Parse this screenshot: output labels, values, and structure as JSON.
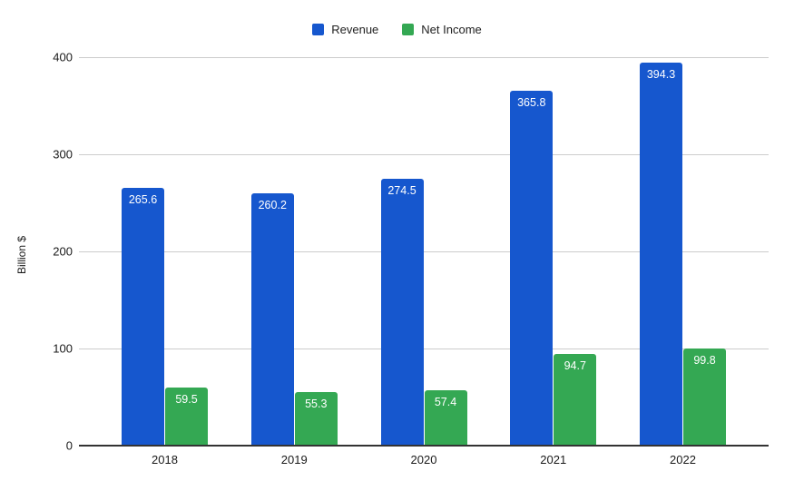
{
  "chart_data": {
    "type": "bar",
    "categories": [
      "2018",
      "2019",
      "2020",
      "2021",
      "2022"
    ],
    "series": [
      {
        "name": "Revenue",
        "color": "#1657ce",
        "values": [
          265.6,
          260.2,
          274.5,
          365.8,
          394.3
        ]
      },
      {
        "name": "Net Income",
        "color": "#34a853",
        "values": [
          59.5,
          55.3,
          57.4,
          94.7,
          99.8
        ]
      }
    ],
    "title": "",
    "xlabel": "",
    "ylabel": "Billion $",
    "yticks": [
      0,
      100,
      200,
      300,
      400
    ],
    "ylim": [
      0,
      400
    ],
    "grid": true,
    "legend_position": "top",
    "gridline_color": "#cccccc",
    "axis_line_color": "#333333",
    "label_text_color": "#ffffff"
  }
}
